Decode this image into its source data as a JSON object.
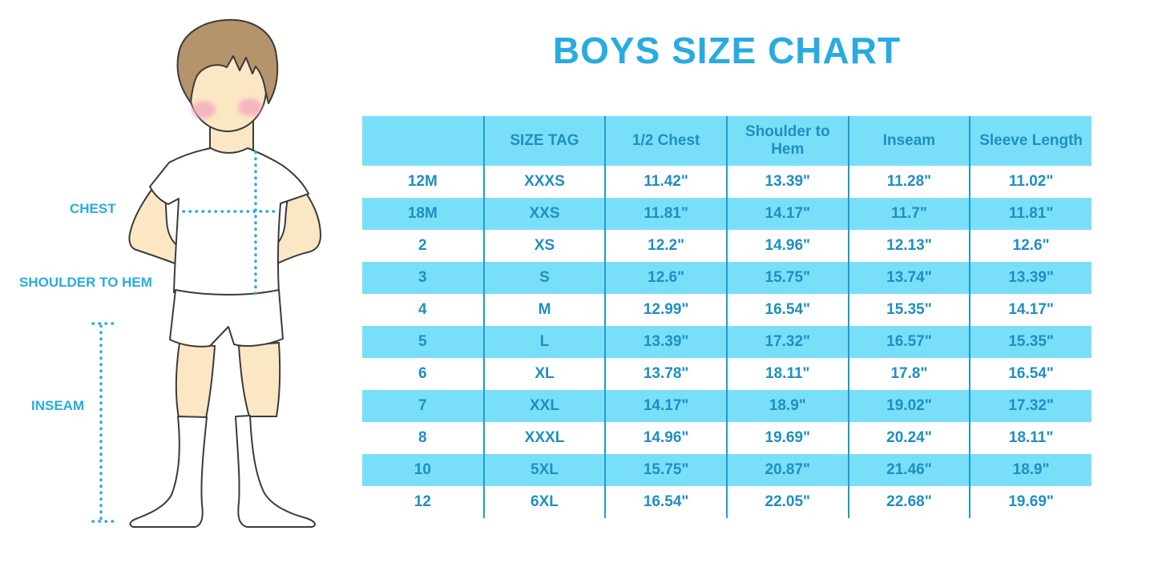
{
  "title": "BOYS SIZE CHART",
  "labels": {
    "chest": "CHEST",
    "shoulder_to_hem": "SHOULDER TO HEM",
    "inseam": "INSEAM"
  },
  "colors": {
    "accent_blue": "#29ABE2",
    "table_fill_blue": "#79DFF8",
    "table_divider_blue": "#1E9CCE",
    "table_text_blue": "#1F8EC1",
    "hair_brown": "#B5936B",
    "skin": "#FBE7C4",
    "blush_pink": "#F2A9BE"
  },
  "chart_data": {
    "type": "table",
    "title": "BOYS SIZE CHART",
    "columns": [
      "",
      "SIZE TAG",
      "1/2 Chest",
      "Shoulder to Hem",
      "Inseam",
      "Sleeve Length"
    ],
    "rows": [
      [
        "12M",
        "XXXS",
        "11.42\"",
        "13.39\"",
        "11.28\"",
        "11.02\""
      ],
      [
        "18M",
        "XXS",
        "11.81\"",
        "14.17\"",
        "11.7\"",
        "11.81\""
      ],
      [
        "2",
        "XS",
        "12.2\"",
        "14.96\"",
        "12.13\"",
        "12.6\""
      ],
      [
        "3",
        "S",
        "12.6\"",
        "15.75\"",
        "13.74\"",
        "13.39\""
      ],
      [
        "4",
        "M",
        "12.99\"",
        "16.54\"",
        "15.35\"",
        "14.17\""
      ],
      [
        "5",
        "L",
        "13.39\"",
        "17.32\"",
        "16.57\"",
        "15.35\""
      ],
      [
        "6",
        "XL",
        "13.78\"",
        "18.11\"",
        "17.8\"",
        "16.54\""
      ],
      [
        "7",
        "XXL",
        "14.17\"",
        "18.9\"",
        "19.02\"",
        "17.32\""
      ],
      [
        "8",
        "XXXL",
        "14.96\"",
        "19.69\"",
        "20.24\"",
        "18.11\""
      ],
      [
        "10",
        "5XL",
        "15.75\"",
        "20.87\"",
        "21.46\"",
        "18.9\""
      ],
      [
        "12",
        "6XL",
        "16.54\"",
        "22.05\"",
        "22.68\"",
        "19.69\""
      ]
    ],
    "layout": {
      "grid": "vertical dividers only, no horizontal lines",
      "striping": "header and every second data row filled light blue, others white",
      "legend": "none"
    }
  }
}
